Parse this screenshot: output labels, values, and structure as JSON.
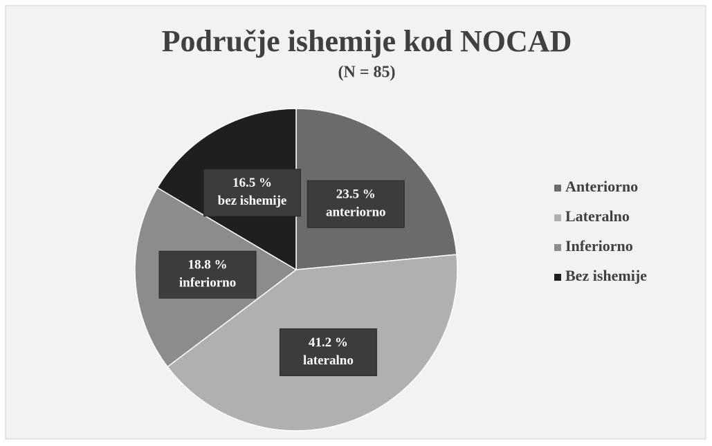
{
  "chart_data": {
    "type": "pie",
    "title": "Područje ishemije kod NOCAD",
    "subtitle": "(N = 85)",
    "categories": [
      "Anteriorno",
      "Lateralno",
      "Inferiorno",
      "Bez ishemije"
    ],
    "values": [
      23.5,
      41.2,
      18.8,
      16.5
    ],
    "value_labels": [
      "23.5 %",
      "41.2 %",
      "18.8 %",
      "16.5 %"
    ],
    "label_names": [
      "anteriorno",
      "lateralno",
      "inferiorno",
      "bez ishemije"
    ],
    "colors": [
      "#6b6b6b",
      "#b0b0b0",
      "#8c8c8c",
      "#1f1f1f"
    ],
    "legend": "right"
  }
}
